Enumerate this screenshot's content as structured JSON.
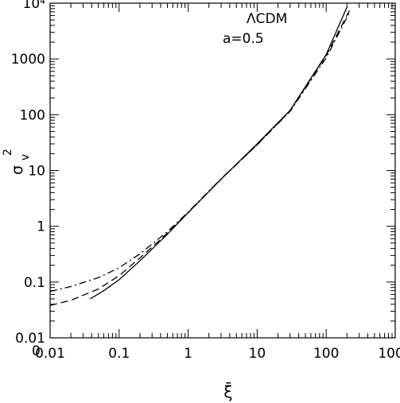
{
  "chart_data": {
    "type": "line",
    "title": "",
    "annotations": [
      "ΛCDM",
      "a=0.5"
    ],
    "xlabel": "ξ̄",
    "ylabel": {
      "base": "σ",
      "sub": "v",
      "sup": "2"
    },
    "x_scale": "log",
    "y_scale": "log",
    "xlim": [
      0.01,
      1000
    ],
    "ylim": [
      0.01,
      10000
    ],
    "grid": false,
    "legend": "none",
    "x_major_ticks": [
      0.01,
      0.1,
      1,
      10,
      100,
      1000
    ],
    "x_tick_labels": [
      "0.01",
      "0.1",
      "1",
      "10",
      "100",
      "1000"
    ],
    "y_major_ticks": [
      0.01,
      0.1,
      1,
      10,
      100,
      1000,
      10000
    ],
    "y_tick_labels": [
      "0.01",
      "0.1",
      "1",
      "10",
      "100",
      "1000",
      "10⁴"
    ],
    "extra_labels": [
      "0"
    ],
    "series": [
      {
        "line_style": "solid",
        "x": [
          0.038,
          0.06,
          0.1,
          0.2,
          0.5,
          1,
          3,
          10,
          30,
          100,
          200
        ],
        "y": [
          0.05,
          0.07,
          0.11,
          0.24,
          0.72,
          1.75,
          7.0,
          30,
          120,
          1200,
          8500
        ]
      },
      {
        "line_style": "dashed",
        "x": [
          0.01,
          0.02,
          0.05,
          0.1,
          0.2,
          0.5,
          1,
          3,
          10,
          30,
          100,
          220
        ],
        "y": [
          0.038,
          0.047,
          0.075,
          0.13,
          0.27,
          0.75,
          1.75,
          7.0,
          29,
          118,
          1150,
          7600
        ]
      },
      {
        "line_style": "dashdot",
        "x": [
          0.01,
          0.02,
          0.05,
          0.1,
          0.2,
          0.5,
          1,
          3,
          10,
          30,
          100,
          220
        ],
        "y": [
          0.068,
          0.083,
          0.12,
          0.18,
          0.32,
          0.8,
          1.8,
          7.1,
          29,
          115,
          1050,
          7000
        ]
      }
    ]
  }
}
